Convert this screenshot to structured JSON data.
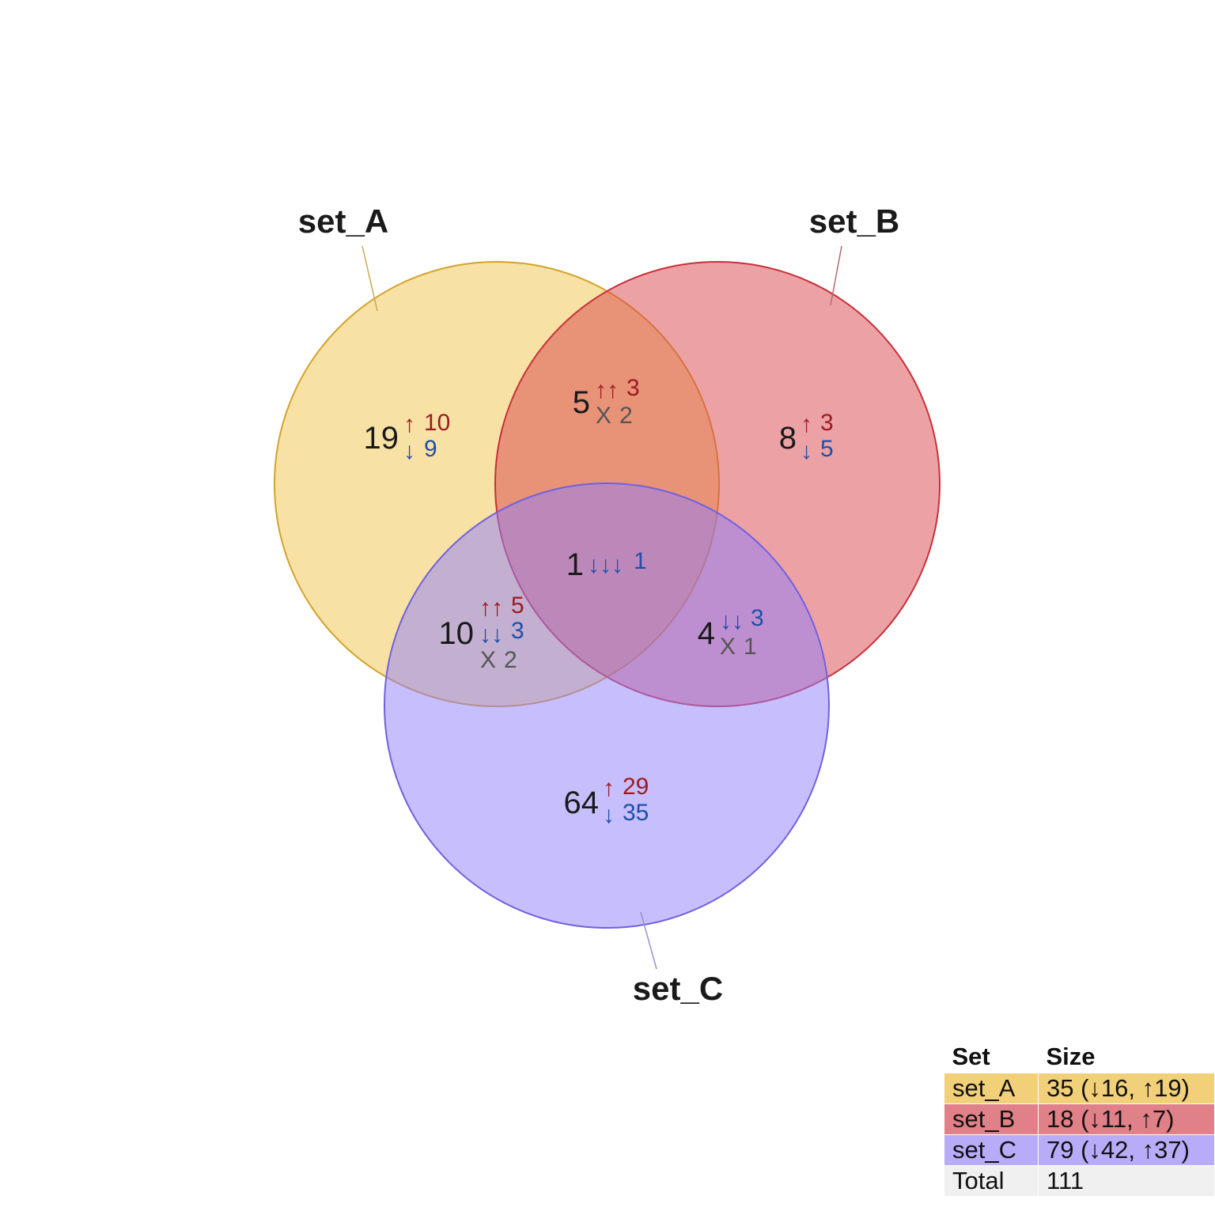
{
  "sets": [
    {
      "name": "set_A",
      "fill": "#f0c44c",
      "stroke": "#d4a22a"
    },
    {
      "name": "set_B",
      "fill": "#d9434b",
      "stroke": "#c83038"
    },
    {
      "name": "set_C",
      "fill": "#8f7dfc",
      "stroke": "#7060e0"
    }
  ],
  "colors": {
    "up": "#9b1c22",
    "down": "#1f4fa8",
    "mixed": "#555555"
  },
  "regions": {
    "a_only": {
      "count": "19",
      "up_arrows": "↑",
      "up": "10",
      "down_arrows": "↓",
      "down": "9"
    },
    "b_only": {
      "count": "8",
      "up_arrows": "↑",
      "up": "3",
      "down_arrows": "↓",
      "down": "5"
    },
    "c_only": {
      "count": "64",
      "up_arrows": "↑",
      "up": "29",
      "down_arrows": "↓",
      "down": "35"
    },
    "ab": {
      "count": "5",
      "up_arrows": "↑↑",
      "up": "3",
      "mixed_symbol": "X",
      "mixed": "2"
    },
    "ac": {
      "count": "10",
      "up_arrows": "↑↑",
      "up": "5",
      "down_arrows": "↓↓",
      "down": "3",
      "mixed_symbol": "X",
      "mixed": "2"
    },
    "bc": {
      "count": "4",
      "down_arrows": "↓↓",
      "down": "3",
      "mixed_symbol": "X",
      "mixed": "1"
    },
    "abc": {
      "count": "1",
      "down_arrows": "↓↓↓",
      "down": "1"
    }
  },
  "legend": {
    "header_set": "Set",
    "header_size": "Size",
    "rows": [
      {
        "set": "set_A",
        "size": "35 (↓16, ↑19)",
        "color": "#f2d07a"
      },
      {
        "set": "set_B",
        "size": "18 (↓11, ↑7)",
        "color": "#e08088"
      },
      {
        "set": "set_C",
        "size": "79 (↓42, ↑37)",
        "color": "#b8acf8"
      },
      {
        "set": "Total",
        "size": "111",
        "color": "#f0f0f0"
      }
    ]
  }
}
